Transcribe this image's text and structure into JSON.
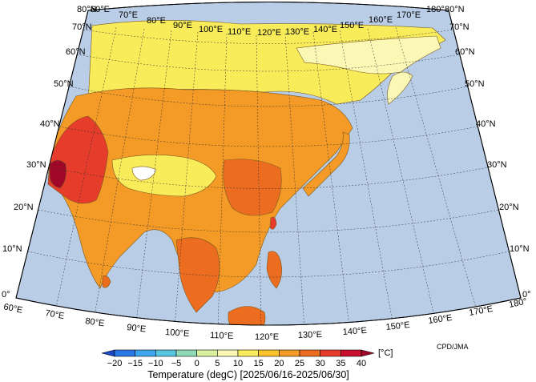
{
  "credit": "CPD/JMA",
  "colorbar": {
    "title": "Temperature (degC) [2025/06/16-2025/06/30]",
    "unit": "[°C]",
    "labels": [
      "−20",
      "−15",
      "−10",
      "−5",
      "0",
      "5",
      "10",
      "15",
      "20",
      "25",
      "30",
      "35",
      "40"
    ],
    "colors": [
      "#1a46c8",
      "#2878e6",
      "#3ea6ee",
      "#58c4e0",
      "#8fd9b4",
      "#d8f09e",
      "#fbf7b4",
      "#f9ec5a",
      "#fbc32a",
      "#f49a26",
      "#ec6c20",
      "#e63c2c",
      "#c8102e",
      "#a0082a"
    ]
  },
  "map": {
    "ocean_color": "#b9cde6",
    "longitude_labels_bottom": [
      "60°E",
      "70°E",
      "80°E",
      "90°E",
      "100°E",
      "110°E",
      "120°E",
      "130°E",
      "140°E",
      "150°E",
      "160°E",
      "170°E",
      "180°"
    ],
    "longitude_labels_top": [
      "60°E",
      "70°E",
      "80°E",
      "90°E",
      "100°E",
      "110°E",
      "120°E",
      "130°E",
      "140°E",
      "150°E",
      "160°E",
      "170°E",
      "180°"
    ],
    "latitude_labels_left": [
      "0°",
      "10°N",
      "20°N",
      "30°N",
      "40°N",
      "50°N",
      "60°N",
      "70°N",
      "80°N"
    ],
    "latitude_labels_right": [
      "0°",
      "10°N",
      "20°N",
      "30°N",
      "40°N",
      "50°N",
      "60°N",
      "70°N",
      "80°N"
    ]
  }
}
